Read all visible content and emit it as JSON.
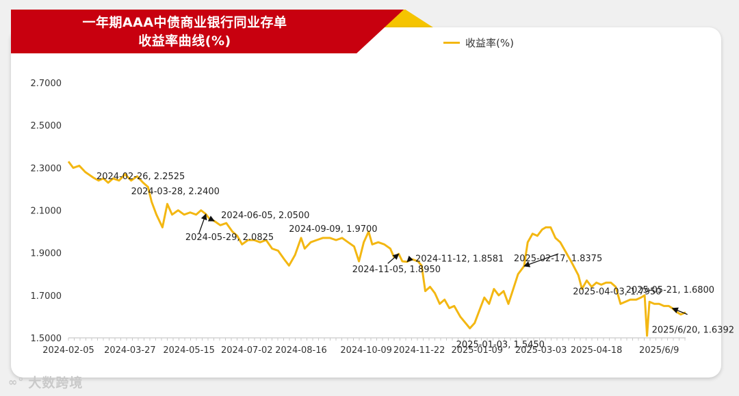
{
  "header": {
    "title_line1": "一年期AAA中债商业银行同业存单",
    "title_line2": "收益率曲线(%)"
  },
  "legend": {
    "label": "收益率(%)"
  },
  "watermark": {
    "text": "大数跨境",
    "icon": "dashuju-logo-icon"
  },
  "colors": {
    "line": "#f3b712",
    "banner": "#c8000f",
    "banner_accent": "#f5c400"
  },
  "chart_data": {
    "type": "line",
    "title": "一年期AAA中债商业银行同业存单 收益率曲线(%)",
    "xlabel": "",
    "ylabel": "",
    "ylim": [
      1.5,
      2.8
    ],
    "y_ticks": [
      "1.5000",
      "1.7000",
      "1.9000",
      "2.1000",
      "2.3000",
      "2.5000",
      "2.7000"
    ],
    "x_ticks": [
      "2024-02-05",
      "2024-03-27",
      "2024-05-15",
      "2024-07-02",
      "2024-08-16",
      "2024-10-09",
      "2024-11-22",
      "2025-01-09",
      "2025-03-03",
      "2025-04-18",
      "2025/6/9"
    ],
    "grid": false,
    "legend_position": "top-right",
    "series": [
      {
        "name": "收益率(%)",
        "points": [
          [
            "2024-02-05",
            2.33
          ],
          [
            "2024-02-09",
            2.3
          ],
          [
            "2024-02-14",
            2.31
          ],
          [
            "2024-02-19",
            2.28
          ],
          [
            "2024-02-26",
            2.2525
          ],
          [
            "2024-03-01",
            2.24
          ],
          [
            "2024-03-05",
            2.25
          ],
          [
            "2024-03-09",
            2.23
          ],
          [
            "2024-03-13",
            2.25
          ],
          [
            "2024-03-18",
            2.24
          ],
          [
            "2024-03-23",
            2.27
          ],
          [
            "2024-03-28",
            2.24
          ],
          [
            "2024-04-02",
            2.26
          ],
          [
            "2024-04-07",
            2.23
          ],
          [
            "2024-04-11",
            2.21
          ],
          [
            "2024-04-14",
            2.14
          ],
          [
            "2024-04-18",
            2.08
          ],
          [
            "2024-04-23",
            2.02
          ],
          [
            "2024-04-27",
            2.13
          ],
          [
            "2024-05-01",
            2.08
          ],
          [
            "2024-05-06",
            2.1
          ],
          [
            "2024-05-11",
            2.08
          ],
          [
            "2024-05-16",
            2.09
          ],
          [
            "2024-05-21",
            2.08
          ],
          [
            "2024-05-25",
            2.1
          ],
          [
            "2024-05-29",
            2.0825
          ],
          [
            "2024-06-01",
            2.06
          ],
          [
            "2024-06-05",
            2.05
          ],
          [
            "2024-06-10",
            2.03
          ],
          [
            "2024-06-15",
            2.04
          ],
          [
            "2024-06-20",
            2.0
          ],
          [
            "2024-06-24",
            1.98
          ],
          [
            "2024-06-28",
            1.94
          ],
          [
            "2024-07-03",
            1.96
          ],
          [
            "2024-07-08",
            1.96
          ],
          [
            "2024-07-13",
            1.95
          ],
          [
            "2024-07-18",
            1.96
          ],
          [
            "2024-07-23",
            1.92
          ],
          [
            "2024-07-28",
            1.91
          ],
          [
            "2024-08-02",
            1.87
          ],
          [
            "2024-08-06",
            1.84
          ],
          [
            "2024-08-11",
            1.89
          ],
          [
            "2024-08-16",
            1.97
          ],
          [
            "2024-08-19",
            1.92
          ],
          [
            "2024-08-24",
            1.95
          ],
          [
            "2024-08-29",
            1.96
          ],
          [
            "2024-09-03",
            1.97
          ],
          [
            "2024-09-09",
            1.97
          ],
          [
            "2024-09-14",
            1.96
          ],
          [
            "2024-09-19",
            1.97
          ],
          [
            "2024-09-24",
            1.95
          ],
          [
            "2024-09-29",
            1.93
          ],
          [
            "2024-10-03",
            1.86
          ],
          [
            "2024-10-07",
            1.95
          ],
          [
            "2024-10-11",
            2.0
          ],
          [
            "2024-10-14",
            1.94
          ],
          [
            "2024-10-19",
            1.95
          ],
          [
            "2024-10-24",
            1.94
          ],
          [
            "2024-10-29",
            1.92
          ],
          [
            "2024-11-01",
            1.88
          ],
          [
            "2024-11-05",
            1.895
          ],
          [
            "2024-11-08",
            1.86
          ],
          [
            "2024-11-12",
            1.8581
          ],
          [
            "2024-11-16",
            1.87
          ],
          [
            "2024-11-21",
            1.86
          ],
          [
            "2024-11-24",
            1.84
          ],
          [
            "2024-11-27",
            1.72
          ],
          [
            "2024-12-01",
            1.74
          ],
          [
            "2024-12-05",
            1.71
          ],
          [
            "2024-12-09",
            1.66
          ],
          [
            "2024-12-13",
            1.68
          ],
          [
            "2024-12-17",
            1.64
          ],
          [
            "2024-12-21",
            1.65
          ],
          [
            "2024-12-26",
            1.6
          ],
          [
            "2025-01-03",
            1.545
          ],
          [
            "2025-01-07",
            1.57
          ],
          [
            "2025-01-11",
            1.63
          ],
          [
            "2025-01-15",
            1.69
          ],
          [
            "2025-01-19",
            1.66
          ],
          [
            "2025-01-23",
            1.73
          ],
          [
            "2025-01-27",
            1.7
          ],
          [
            "2025-01-31",
            1.72
          ],
          [
            "2025-02-04",
            1.66
          ],
          [
            "2025-02-08",
            1.73
          ],
          [
            "2025-02-12",
            1.8
          ],
          [
            "2025-02-17",
            1.8375
          ],
          [
            "2025-02-20",
            1.95
          ],
          [
            "2025-02-24",
            1.99
          ],
          [
            "2025-02-28",
            1.98
          ],
          [
            "2025-03-04",
            2.01
          ],
          [
            "2025-03-07",
            2.02
          ],
          [
            "2025-03-11",
            2.02
          ],
          [
            "2025-03-15",
            1.97
          ],
          [
            "2025-03-19",
            1.95
          ],
          [
            "2025-03-24",
            1.9
          ],
          [
            "2025-03-28",
            1.86
          ],
          [
            "2025-04-03",
            1.795
          ],
          [
            "2025-04-06",
            1.73
          ],
          [
            "2025-04-10",
            1.77
          ],
          [
            "2025-04-14",
            1.74
          ],
          [
            "2025-04-18",
            1.76
          ],
          [
            "2025-04-22",
            1.75
          ],
          [
            "2025-04-26",
            1.76
          ],
          [
            "2025-04-30",
            1.76
          ],
          [
            "2025-05-04",
            1.74
          ],
          [
            "2025-05-08",
            1.66
          ],
          [
            "2025-05-12",
            1.67
          ],
          [
            "2025-05-16",
            1.68
          ],
          [
            "2025-05-21",
            1.68
          ],
          [
            "2025-05-25",
            1.69
          ],
          [
            "2025-05-28",
            1.7
          ],
          [
            "2025-05-30",
            1.51
          ],
          [
            "2025-06-01",
            1.67
          ],
          [
            "2025-06-05",
            1.66
          ],
          [
            "2025-06-09",
            1.66
          ],
          [
            "2025-06-13",
            1.65
          ],
          [
            "2025-06-17",
            1.65
          ],
          [
            "2025-06-20",
            1.6392
          ],
          [
            "2025-06-24",
            1.62
          ],
          [
            "2025-06-27",
            1.61
          ],
          [
            "2025-07-01",
            1.62
          ]
        ]
      }
    ],
    "annotations": [
      {
        "text": "2024-02-26, 2.2525",
        "x": "2024-02-26",
        "y": 2.2525,
        "arrow": false
      },
      {
        "text": "2024-03-28, 2.2400",
        "x": "2024-03-28",
        "y": 2.24,
        "arrow": false
      },
      {
        "text": "2024-06-05, 2.0500",
        "x": "2024-06-05",
        "y": 2.05,
        "arrow": true
      },
      {
        "text": "2024-05-29, 2.0825",
        "x": "2024-05-29",
        "y": 2.0825,
        "arrow": true
      },
      {
        "text": "2024-09-09, 1.9700",
        "x": "2024-09-09",
        "y": 1.97,
        "arrow": false
      },
      {
        "text": "2024-11-12, 1.8581",
        "x": "2024-11-12",
        "y": 1.8581,
        "arrow": true
      },
      {
        "text": "2024-11-05, 1.8950",
        "x": "2024-11-05",
        "y": 1.895,
        "arrow": true
      },
      {
        "text": "2025-01-03, 1.5450",
        "x": "2025-01-03",
        "y": 1.545,
        "arrow": false
      },
      {
        "text": "2025-02-17, 1.8375",
        "x": "2025-02-17",
        "y": 1.8375,
        "arrow": true
      },
      {
        "text": "2025-04-03, 1.7950",
        "x": "2025-04-03",
        "y": 1.795,
        "arrow": false
      },
      {
        "text": "2025-05-21, 1.6800",
        "x": "2025-05-21",
        "y": 1.68,
        "arrow": false
      },
      {
        "text": "2025/6/20, 1.6392",
        "x": "2025-06-20",
        "y": 1.6392,
        "arrow": true
      }
    ]
  }
}
